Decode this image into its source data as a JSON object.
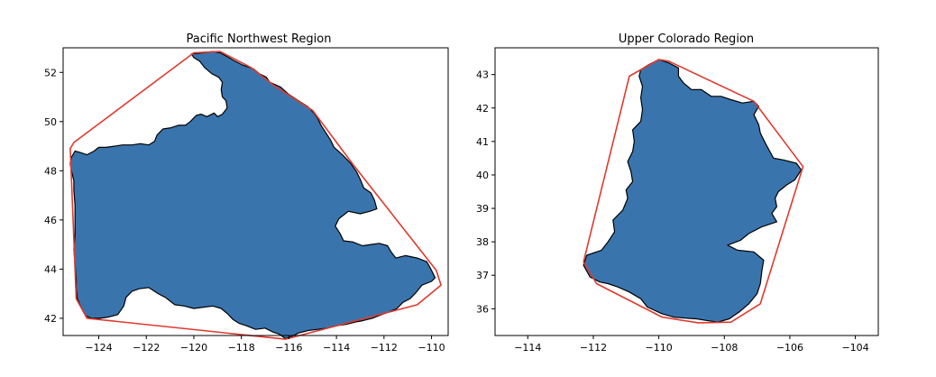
{
  "chart_data": [
    {
      "type": "area",
      "title": "Pacific Northwest Region",
      "xlabel": "",
      "ylabel": "",
      "xlim": [
        -125.5,
        -109.3
      ],
      "ylim": [
        41.3,
        53.0
      ],
      "xticks": [
        -124,
        -122,
        -120,
        -118,
        -116,
        -114,
        -112,
        -110
      ],
      "yticks": [
        42,
        44,
        46,
        48,
        50,
        52
      ],
      "grid": false,
      "colors": {
        "region_fill": "#3a74ad",
        "region_edge": "#000000",
        "hull": "#e03a2e"
      },
      "region_outline": [
        [
          -120.1,
          52.75
        ],
        [
          -119.6,
          52.8
        ],
        [
          -119.2,
          52.85
        ],
        [
          -118.9,
          52.8
        ],
        [
          -118.7,
          52.7
        ],
        [
          -118.35,
          52.5
        ],
        [
          -117.95,
          52.3
        ],
        [
          -117.5,
          52.15
        ],
        [
          -117.25,
          51.95
        ],
        [
          -116.95,
          51.8
        ],
        [
          -116.8,
          51.6
        ],
        [
          -116.35,
          51.4
        ],
        [
          -116.0,
          51.1
        ],
        [
          -115.6,
          50.85
        ],
        [
          -115.2,
          50.6
        ],
        [
          -114.95,
          50.35
        ],
        [
          -114.8,
          50.15
        ],
        [
          -114.65,
          49.85
        ],
        [
          -114.45,
          49.55
        ],
        [
          -114.25,
          49.25
        ],
        [
          -114.1,
          48.95
        ],
        [
          -113.75,
          48.65
        ],
        [
          -113.4,
          48.3
        ],
        [
          -113.15,
          47.95
        ],
        [
          -113.0,
          47.65
        ],
        [
          -112.85,
          47.3
        ],
        [
          -112.55,
          47.1
        ],
        [
          -112.4,
          46.8
        ],
        [
          -112.3,
          46.45
        ],
        [
          -112.6,
          46.35
        ],
        [
          -113.0,
          46.25
        ],
        [
          -113.5,
          46.35
        ],
        [
          -113.9,
          46.05
        ],
        [
          -114.05,
          45.75
        ],
        [
          -113.85,
          45.45
        ],
        [
          -113.7,
          45.15
        ],
        [
          -113.3,
          45.1
        ],
        [
          -112.9,
          44.95
        ],
        [
          -112.55,
          45.0
        ],
        [
          -112.2,
          45.05
        ],
        [
          -111.85,
          44.95
        ],
        [
          -111.7,
          44.7
        ],
        [
          -111.5,
          44.45
        ],
        [
          -111.1,
          44.55
        ],
        [
          -110.6,
          44.45
        ],
        [
          -110.2,
          44.3
        ],
        [
          -110.0,
          43.95
        ],
        [
          -109.85,
          43.65
        ],
        [
          -110.0,
          43.5
        ],
        [
          -110.4,
          43.35
        ],
        [
          -110.65,
          43.05
        ],
        [
          -110.9,
          42.8
        ],
        [
          -111.2,
          42.65
        ],
        [
          -111.45,
          42.4
        ],
        [
          -111.8,
          42.25
        ],
        [
          -112.1,
          42.15
        ],
        [
          -112.5,
          42.0
        ],
        [
          -112.9,
          41.9
        ],
        [
          -113.2,
          41.85
        ],
        [
          -113.6,
          41.75
        ],
        [
          -114.0,
          41.7
        ],
        [
          -114.4,
          41.6
        ],
        [
          -114.8,
          41.55
        ],
        [
          -115.2,
          41.5
        ],
        [
          -115.6,
          41.4
        ],
        [
          -115.9,
          41.25
        ],
        [
          -116.15,
          41.18
        ],
        [
          -116.4,
          41.35
        ],
        [
          -116.7,
          41.45
        ],
        [
          -117.0,
          41.6
        ],
        [
          -117.4,
          41.55
        ],
        [
          -117.8,
          41.7
        ],
        [
          -118.1,
          41.8
        ],
        [
          -118.35,
          41.95
        ],
        [
          -118.6,
          42.2
        ],
        [
          -118.85,
          42.4
        ],
        [
          -119.2,
          42.5
        ],
        [
          -119.6,
          42.45
        ],
        [
          -120.0,
          42.4
        ],
        [
          -120.4,
          42.5
        ],
        [
          -120.8,
          42.55
        ],
        [
          -121.2,
          42.85
        ],
        [
          -121.5,
          43.0
        ],
        [
          -121.9,
          43.25
        ],
        [
          -122.3,
          43.2
        ],
        [
          -122.6,
          43.1
        ],
        [
          -122.85,
          42.85
        ],
        [
          -122.95,
          42.5
        ],
        [
          -123.2,
          42.15
        ],
        [
          -123.6,
          42.05
        ],
        [
          -123.95,
          42.0
        ],
        [
          -124.3,
          42.0
        ],
        [
          -124.55,
          42.1
        ],
        [
          -124.75,
          42.45
        ],
        [
          -124.9,
          42.8
        ],
        [
          -124.95,
          43.2
        ],
        [
          -124.95,
          43.6
        ],
        [
          -125.0,
          44.2
        ],
        [
          -125.05,
          44.8
        ],
        [
          -125.0,
          45.4
        ],
        [
          -125.0,
          46.0
        ],
        [
          -125.0,
          46.6
        ],
        [
          -125.05,
          47.2
        ],
        [
          -125.05,
          47.6
        ],
        [
          -125.15,
          48.0
        ],
        [
          -125.2,
          48.3
        ],
        [
          -125.15,
          48.55
        ],
        [
          -125.0,
          48.8
        ],
        [
          -124.8,
          48.75
        ],
        [
          -124.5,
          48.65
        ],
        [
          -124.2,
          48.8
        ],
        [
          -124.0,
          48.95
        ],
        [
          -123.7,
          48.95
        ],
        [
          -123.35,
          49.0
        ],
        [
          -123.0,
          49.05
        ],
        [
          -122.6,
          49.05
        ],
        [
          -122.25,
          49.1
        ],
        [
          -121.9,
          49.05
        ],
        [
          -121.65,
          49.2
        ],
        [
          -121.55,
          49.45
        ],
        [
          -121.3,
          49.7
        ],
        [
          -120.95,
          49.75
        ],
        [
          -120.65,
          49.85
        ],
        [
          -120.35,
          49.85
        ],
        [
          -120.15,
          50.0
        ],
        [
          -119.9,
          50.25
        ],
        [
          -119.7,
          50.3
        ],
        [
          -119.45,
          50.2
        ],
        [
          -119.15,
          50.35
        ],
        [
          -119.0,
          50.2
        ],
        [
          -118.8,
          50.3
        ],
        [
          -118.6,
          50.55
        ],
        [
          -118.65,
          50.85
        ],
        [
          -118.8,
          51.0
        ],
        [
          -118.85,
          51.3
        ],
        [
          -118.8,
          51.6
        ],
        [
          -118.95,
          51.8
        ],
        [
          -119.25,
          51.95
        ],
        [
          -119.55,
          52.2
        ],
        [
          -119.75,
          52.45
        ],
        [
          -120.0,
          52.6
        ],
        [
          -120.1,
          52.75
        ]
      ],
      "convex_hull": [
        [
          -120.0,
          52.8
        ],
        [
          -118.9,
          52.85
        ],
        [
          -117.6,
          52.2
        ],
        [
          -116.6,
          51.45
        ],
        [
          -115.0,
          50.45
        ],
        [
          -113.3,
          48.25
        ],
        [
          -109.8,
          43.95
        ],
        [
          -109.6,
          43.35
        ],
        [
          -110.6,
          42.55
        ],
        [
          -116.15,
          41.15
        ],
        [
          -124.5,
          42.0
        ],
        [
          -124.95,
          42.8
        ],
        [
          -125.2,
          48.9
        ],
        [
          -125.05,
          49.15
        ],
        [
          -120.0,
          52.8
        ]
      ]
    },
    {
      "type": "area",
      "title": "Upper Colorado Region",
      "xlabel": "",
      "ylabel": "",
      "xlim": [
        -115.0,
        -103.3
      ],
      "ylim": [
        35.2,
        43.8
      ],
      "xticks": [
        -114,
        -112,
        -110,
        -108,
        -106,
        -104
      ],
      "yticks": [
        36,
        37,
        38,
        39,
        40,
        41,
        42,
        43
      ],
      "grid": false,
      "colors": {
        "region_fill": "#3a74ad",
        "region_edge": "#000000",
        "hull": "#e03a2e"
      },
      "region_outline": [
        [
          -110.0,
          43.45
        ],
        [
          -109.7,
          43.35
        ],
        [
          -109.4,
          43.2
        ],
        [
          -109.4,
          42.95
        ],
        [
          -109.25,
          42.75
        ],
        [
          -109.0,
          42.55
        ],
        [
          -108.7,
          42.55
        ],
        [
          -108.4,
          42.35
        ],
        [
          -108.1,
          42.35
        ],
        [
          -107.8,
          42.25
        ],
        [
          -107.45,
          42.15
        ],
        [
          -107.1,
          42.2
        ],
        [
          -106.95,
          42.05
        ],
        [
          -107.1,
          41.8
        ],
        [
          -106.95,
          41.5
        ],
        [
          -106.9,
          41.25
        ],
        [
          -106.75,
          40.95
        ],
        [
          -106.5,
          40.5
        ],
        [
          -106.2,
          40.45
        ],
        [
          -105.8,
          40.35
        ],
        [
          -105.65,
          40.15
        ],
        [
          -105.85,
          39.85
        ],
        [
          -106.1,
          39.7
        ],
        [
          -106.35,
          39.5
        ],
        [
          -106.45,
          39.3
        ],
        [
          -106.4,
          39.05
        ],
        [
          -106.55,
          38.85
        ],
        [
          -106.4,
          38.6
        ],
        [
          -106.85,
          38.45
        ],
        [
          -107.25,
          38.25
        ],
        [
          -107.5,
          38.05
        ],
        [
          -107.9,
          37.9
        ],
        [
          -107.6,
          37.75
        ],
        [
          -107.1,
          37.7
        ],
        [
          -106.8,
          37.45
        ],
        [
          -106.85,
          37.15
        ],
        [
          -106.9,
          36.75
        ],
        [
          -107.0,
          36.45
        ],
        [
          -107.25,
          36.15
        ],
        [
          -107.55,
          35.9
        ],
        [
          -107.85,
          35.7
        ],
        [
          -108.2,
          35.6
        ],
        [
          -108.55,
          35.65
        ],
        [
          -108.85,
          35.7
        ],
        [
          -109.2,
          35.72
        ],
        [
          -109.55,
          35.75
        ],
        [
          -109.9,
          35.85
        ],
        [
          -110.35,
          36.05
        ],
        [
          -110.55,
          36.3
        ],
        [
          -110.9,
          36.5
        ],
        [
          -111.25,
          36.65
        ],
        [
          -111.55,
          36.75
        ],
        [
          -111.8,
          36.8
        ],
        [
          -112.1,
          36.95
        ],
        [
          -112.3,
          37.3
        ],
        [
          -112.2,
          37.6
        ],
        [
          -111.75,
          37.75
        ],
        [
          -111.55,
          38.0
        ],
        [
          -111.35,
          38.3
        ],
        [
          -111.4,
          38.65
        ],
        [
          -111.1,
          38.95
        ],
        [
          -110.95,
          39.3
        ],
        [
          -111.0,
          39.55
        ],
        [
          -110.8,
          39.8
        ],
        [
          -110.85,
          40.1
        ],
        [
          -110.95,
          40.4
        ],
        [
          -110.8,
          40.7
        ],
        [
          -110.75,
          41.0
        ],
        [
          -110.8,
          41.35
        ],
        [
          -110.55,
          41.6
        ],
        [
          -110.5,
          41.95
        ],
        [
          -110.55,
          42.3
        ],
        [
          -110.5,
          42.65
        ],
        [
          -110.6,
          42.95
        ],
        [
          -110.55,
          43.15
        ],
        [
          -110.3,
          43.3
        ],
        [
          -110.0,
          43.45
        ]
      ],
      "convex_hull": [
        [
          -110.0,
          43.45
        ],
        [
          -109.7,
          43.4
        ],
        [
          -107.1,
          42.2
        ],
        [
          -105.6,
          40.25
        ],
        [
          -106.9,
          36.15
        ],
        [
          -107.8,
          35.6
        ],
        [
          -108.8,
          35.58
        ],
        [
          -109.9,
          35.75
        ],
        [
          -111.9,
          36.75
        ],
        [
          -112.3,
          37.4
        ],
        [
          -110.9,
          42.95
        ],
        [
          -110.0,
          43.45
        ]
      ]
    }
  ]
}
